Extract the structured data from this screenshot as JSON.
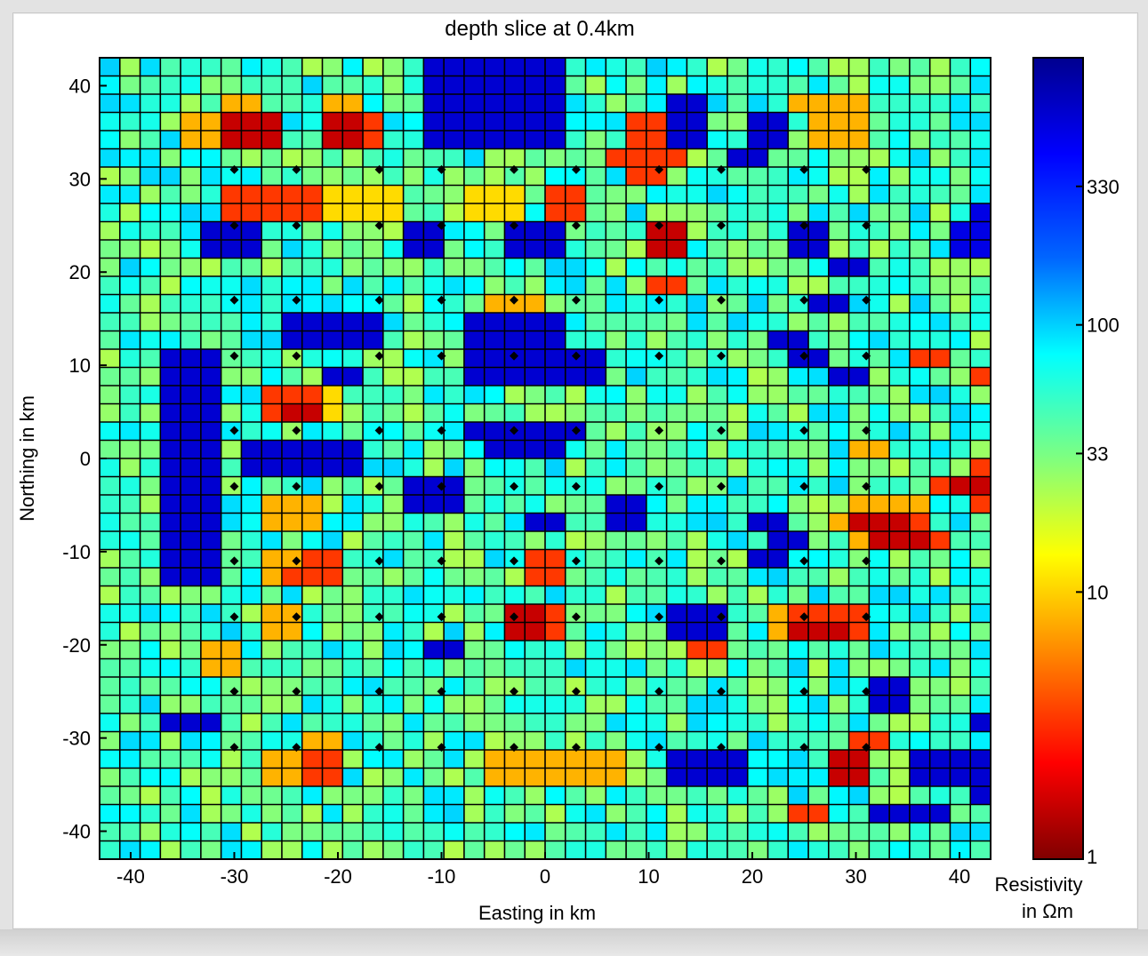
{
  "chart_data": {
    "type": "heatmap",
    "title": "depth slice at 0.4km",
    "xlabel": "Easting in km",
    "ylabel": "Northing in km",
    "xlim": [
      -43,
      43
    ],
    "ylim": [
      -43,
      43
    ],
    "x_ticks": [
      "-40",
      "-30",
      "-20",
      "-10",
      "0",
      "10",
      "20",
      "30",
      "40"
    ],
    "y_ticks": [
      "40",
      "30",
      "20",
      "10",
      "0",
      "-10",
      "-20",
      "-30",
      "-40"
    ],
    "grid": true,
    "colorbar": {
      "label_line1": "Resistivity",
      "label_line2": "in Ωm",
      "scale": "log",
      "range": [
        1,
        1000
      ],
      "ticks": [
        "330",
        "100",
        "33",
        "10",
        "1"
      ],
      "tick_values": [
        330,
        100,
        33,
        10,
        1
      ],
      "colormap": "jet_reversed"
    },
    "station_markers": {
      "x": [
        -30,
        -24,
        -16,
        -10,
        -3,
        3,
        11,
        17,
        25,
        31
      ],
      "y": [
        31,
        25,
        17,
        11,
        3,
        -3,
        -11,
        -17,
        -25,
        -31
      ]
    },
    "grid_size": {
      "cols": 44,
      "rows": 44
    },
    "cells": [
      "................EEEEEEE.........................",
      "................EEEEEEE.........................",
      "......CC...CC...EEEEEEE.....EE....CCCC..........",
      "....CCDDD..DDA..EEEEEEE...AAEE..EE.CCC..........",
      "....CCDDD..DDA..EEEEEEE...AAEE..EE.CCC..........",
      ".........................AAAA..EE..............",
      "..........................AA.....................",
      "......AAAAABBBB...BBB.AA..........................",
      "......AAAAABBBB...BBB.AA...................FFFF...",
      ".....EEE.......EE...EEE....DD.....EE......FFFF...",
      ".....EEE.......EE...EEE....DD.....EE......FFFF...",
      "....................................EE...........",
      "...........................AA.................... ",
      "...................CCC.............EE...........",
      ".........EEEEE....EEEEE.......................",
      ".........EEEEE....EEEEE..........EE..............",
      "...EEE............EEEEEEE.........EE....AA.......",
      "...EEE.....EE.....EEEEEEE...........EE.....AAA....",
      "...EEE..AAAB...................................",
      "...EEE..ADDB..........................",
      "...EEE............EEEEEE........................",
      "...EEE.EEEEEE......EEEE..............CC.........",
      "...EEE.EEEEEE..............................AAAA..",
      "...EEE.........EEE.......................ADDA..",
      "...EEE..CCC....EEE.......EE..........CCCC..ADDA..",
      "...EEE..CCC..........EE..EE.....EE..CDDDA...AA...",
      "...EEE...........................EE..CDDDA.......",
      "...EEE..CCAA.........AA.........EE...............",
      "...EEE..CAAA.........AA..........................",
      ".........................................",
      "........CC..........DDA.....EEE..CAAAA...........",
      "........CC..........DDA.....EEE..CDDDA...........",
      ".....CC.........EE...........AA...............",
      ".....CC..........................................",
      "......................................EE.....EEE.",
      "......................................EE.....EEE.",
      "...EEE.....................................EEE.",
      "..........CC.........................AA.........",
      "........CCAA.......CCCCCCC..EEEE....DD..EEEE......",
      "........CCAA.......CCCCCCC..EEEE....DD..EEEE......",
      "...........................................EEEE......",
      "..................................AA..EEEE......",
      "..........................................",
      ".........................................."
    ]
  }
}
